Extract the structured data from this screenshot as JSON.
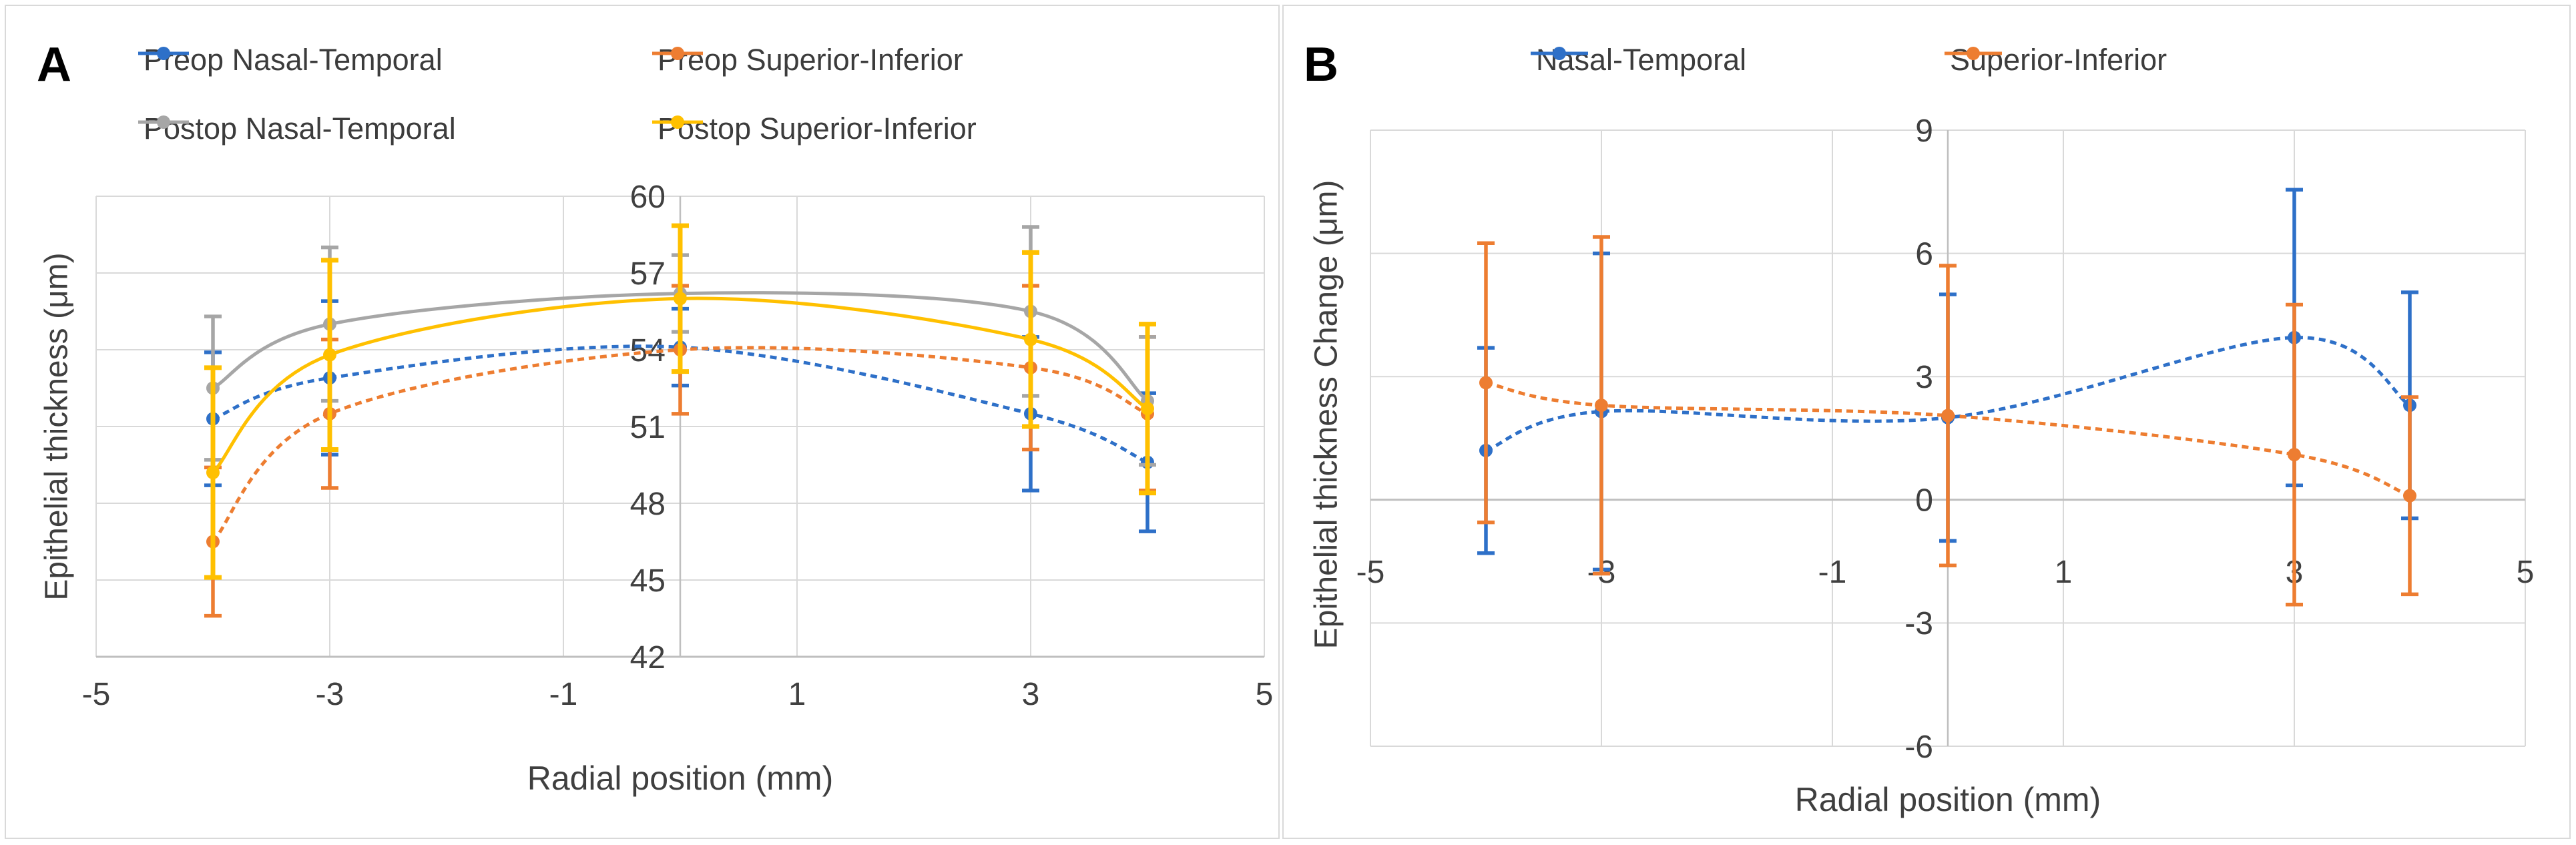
{
  "figure": {
    "style": {
      "blue": "#2E70C8",
      "orange": "#ED7D31",
      "gray": "#A6A6A6",
      "yellow": "#FFC000",
      "grid_color": "#D9D9D9",
      "axis_color": "#BFBFBF",
      "text_color": "#404040"
    }
  },
  "chart_data": [
    {
      "panel_label": "A",
      "type": "line",
      "smooth": true,
      "title": "",
      "xlabel": "Radial position (mm)",
      "ylabel": "Epithelial thickness (μm)",
      "xlim": [
        -5,
        5
      ],
      "ylim": [
        42,
        60
      ],
      "xticks": [
        -5,
        -3,
        -1,
        1,
        3,
        5
      ],
      "yticks": [
        42,
        45,
        48,
        51,
        54,
        57,
        60
      ],
      "grid": true,
      "legend_position": "top",
      "x": [
        -4,
        -3,
        0,
        3,
        4
      ],
      "series": [
        {
          "name": "Preop Nasal-Temporal",
          "color": "#2E70C8",
          "line_style": "dashed",
          "values": [
            51.3,
            52.9,
            54.1,
            51.5,
            49.6
          ],
          "err": [
            2.6,
            3.0,
            1.5,
            3.0,
            2.7
          ]
        },
        {
          "name": "Preop Superior-Inferior",
          "color": "#ED7D31",
          "line_style": "dashed",
          "values": [
            46.5,
            51.5,
            54.0,
            53.3,
            51.5
          ],
          "err": [
            2.9,
            2.9,
            2.5,
            3.2,
            3.0
          ]
        },
        {
          "name": "Postop Nasal-Temporal",
          "color": "#A6A6A6",
          "line_style": "solid",
          "values": [
            52.5,
            55.0,
            56.2,
            55.5,
            52.0
          ],
          "err": [
            2.8,
            3.0,
            1.5,
            3.3,
            2.5
          ]
        },
        {
          "name": "Postop Superior-Inferior",
          "color": "#FFC000",
          "line_style": "solid",
          "values": [
            49.2,
            53.8,
            56.0,
            54.4,
            51.7
          ],
          "err": [
            4.1,
            3.7,
            2.85,
            3.4,
            3.3
          ]
        }
      ]
    },
    {
      "panel_label": "B",
      "type": "line",
      "smooth": true,
      "title": "",
      "xlabel": "Radial position (mm)",
      "ylabel": "Epithelial thickness Change (μm)",
      "xlim": [
        -5,
        5
      ],
      "ylim": [
        -6,
        9
      ],
      "xticks": [
        -5,
        -3,
        -1,
        1,
        3,
        5
      ],
      "yticks": [
        -6,
        -3,
        0,
        3,
        6,
        9
      ],
      "grid": true,
      "legend_position": "top",
      "x": [
        -4,
        -3,
        0,
        3,
        4
      ],
      "series": [
        {
          "name": "Nasal-Temporal",
          "color": "#2E70C8",
          "line_style": "dashed",
          "values": [
            1.2,
            2.15,
            2.0,
            3.95,
            2.3
          ],
          "err": [
            2.5,
            3.85,
            3.0,
            3.6,
            2.75
          ]
        },
        {
          "name": "Superior-Inferior",
          "color": "#ED7D31",
          "line_style": "dashed",
          "values": [
            2.85,
            2.3,
            2.05,
            1.1,
            0.1
          ],
          "err": [
            3.4,
            4.1,
            3.65,
            3.65,
            2.4
          ]
        }
      ]
    }
  ]
}
